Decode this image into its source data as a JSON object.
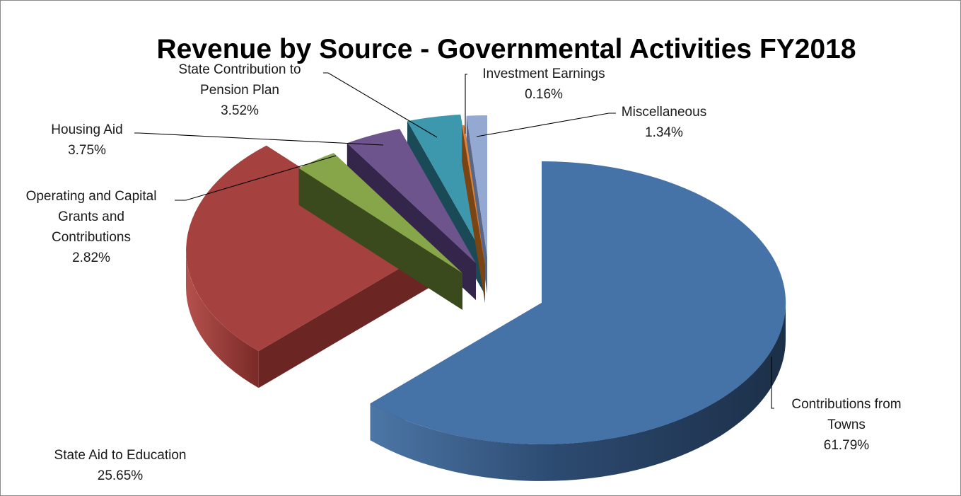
{
  "chart_data": {
    "type": "pie",
    "variant": "3d-exploded",
    "title": "Revenue by Source - Governmental Activities FY2018",
    "start_angle_deg": 0,
    "direction": "clockwise",
    "slices": [
      {
        "label": [
          "Contributions from",
          "Towns"
        ],
        "pct_text": "61.79%",
        "value": 61.79,
        "color": "#4572a7",
        "side_color": "#22395a"
      },
      {
        "label": [
          "State Aid to Education"
        ],
        "pct_text": "25.65%",
        "value": 25.65,
        "color": "#a5413e",
        "side_color": "#6b2523"
      },
      {
        "label": [
          "Operating and Capital",
          "Grants and",
          "Contributions"
        ],
        "pct_text": "2.82%",
        "value": 2.82,
        "color": "#86a649",
        "side_color": "#3a4a1c"
      },
      {
        "label": [
          "Housing Aid"
        ],
        "pct_text": "3.75%",
        "value": 3.75,
        "color": "#6e548d",
        "side_color": "#34264a"
      },
      {
        "label": [
          "State Contribution to",
          "Pension Plan"
        ],
        "pct_text": "3.52%",
        "value": 3.52,
        "color": "#3d97ad",
        "side_color": "#1b4a57"
      },
      {
        "label": [
          "Investment Earnings"
        ],
        "pct_text": "0.16%",
        "value": 0.16,
        "color": "#db843d",
        "side_color": "#7a4413"
      },
      {
        "label": [
          "Miscellaneous"
        ],
        "pct_text": "1.34%",
        "value": 1.34,
        "color": "#94a9d1",
        "side_color": "#56678a"
      }
    ]
  }
}
